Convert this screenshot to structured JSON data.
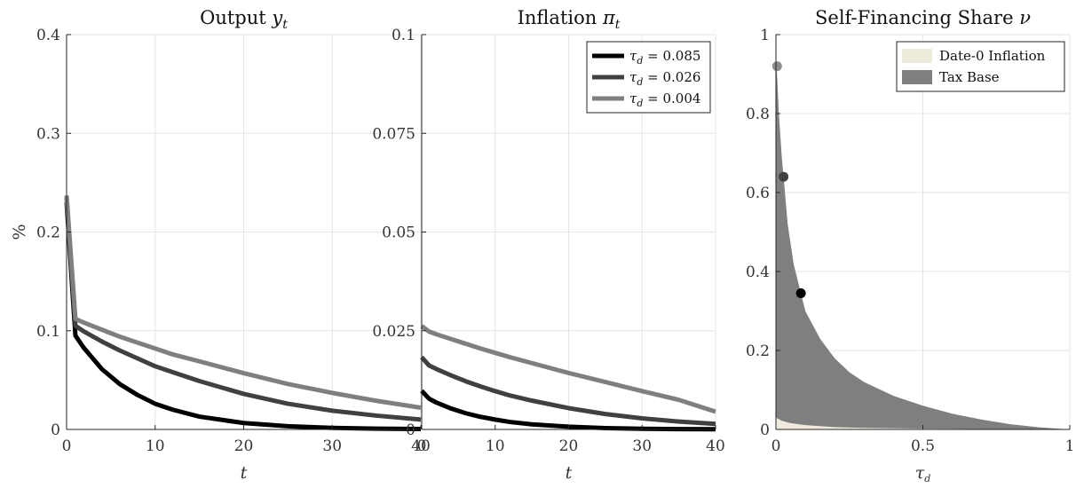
{
  "chart_data": [
    {
      "type": "line",
      "title": "Output y_t",
      "xlabel": "t",
      "ylabel": "%",
      "xlim": [
        0,
        40
      ],
      "ylim": [
        0,
        0.4
      ],
      "xticks": [
        0,
        10,
        20,
        30,
        40
      ],
      "yticks": [
        0,
        0.1,
        0.2,
        0.3,
        0.4
      ],
      "grid": true,
      "series": [
        {
          "name": "τd = 0.085",
          "color": "#000000",
          "x": [
            0,
            1,
            2,
            4,
            6,
            8,
            10,
            12,
            15,
            20,
            25,
            30,
            35,
            40
          ],
          "y": [
            0.23,
            0.095,
            0.082,
            0.061,
            0.046,
            0.035,
            0.026,
            0.02,
            0.013,
            0.0065,
            0.0033,
            0.0016,
            0.0008,
            0.0004
          ]
        },
        {
          "name": "τd = 0.026",
          "color": "#404040",
          "x": [
            0,
            1,
            2,
            4,
            6,
            8,
            10,
            12,
            15,
            20,
            25,
            30,
            35,
            40
          ],
          "y": [
            0.235,
            0.105,
            0.099,
            0.089,
            0.08,
            0.072,
            0.064,
            0.058,
            0.049,
            0.036,
            0.026,
            0.019,
            0.014,
            0.01
          ]
        },
        {
          "name": "τd = 0.004",
          "color": "#7f7f7f",
          "x": [
            0,
            1,
            2,
            4,
            6,
            8,
            10,
            12,
            15,
            20,
            25,
            30,
            35,
            40
          ],
          "y": [
            0.237,
            0.112,
            0.108,
            0.101,
            0.094,
            0.088,
            0.082,
            0.076,
            0.069,
            0.057,
            0.046,
            0.037,
            0.029,
            0.022
          ]
        }
      ]
    },
    {
      "type": "line",
      "title": "Inflation π_t",
      "xlabel": "t",
      "xlim": [
        0,
        40
      ],
      "ylim": [
        0,
        0.1
      ],
      "xticks": [
        0,
        10,
        20,
        30,
        40
      ],
      "yticks": [
        0,
        0.025,
        0.05,
        0.075,
        0.1
      ],
      "grid": true,
      "legend": "top-right",
      "series": [
        {
          "name": "τd = 0.085",
          "color": "#000000",
          "x": [
            0,
            1,
            2,
            4,
            6,
            8,
            10,
            12,
            15,
            20,
            25,
            30,
            35,
            40
          ],
          "y": [
            0.0098,
            0.0078,
            0.0068,
            0.0053,
            0.0041,
            0.0032,
            0.0025,
            0.0019,
            0.0013,
            0.0007,
            0.00035,
            0.00018,
            9e-05,
            5e-05
          ]
        },
        {
          "name": "τd = 0.026",
          "color": "#404040",
          "x": [
            0,
            1,
            2,
            4,
            6,
            8,
            10,
            12,
            15,
            20,
            25,
            30,
            35,
            40
          ],
          "y": [
            0.0183,
            0.0162,
            0.0153,
            0.0137,
            0.0122,
            0.0109,
            0.0097,
            0.0086,
            0.0073,
            0.0054,
            0.0039,
            0.0028,
            0.002,
            0.0014
          ]
        },
        {
          "name": "τd = 0.004",
          "color": "#7f7f7f",
          "x": [
            0,
            1,
            2,
            4,
            6,
            8,
            10,
            12,
            15,
            20,
            25,
            30,
            35,
            40
          ],
          "y": [
            0.0262,
            0.0248,
            0.0241,
            0.0229,
            0.0217,
            0.0205,
            0.0194,
            0.0183,
            0.0168,
            0.0143,
            0.012,
            0.0097,
            0.0075,
            0.0045
          ]
        }
      ]
    },
    {
      "type": "area",
      "title": "Self-Financing Share ν",
      "xlabel": "τd",
      "xlim": [
        0,
        1
      ],
      "ylim": [
        0,
        1
      ],
      "xticks": [
        0,
        0.5,
        1
      ],
      "yticks": [
        0,
        0.2,
        0.4,
        0.6,
        0.8,
        1
      ],
      "grid": true,
      "legend": "top-right",
      "series": [
        {
          "name": "Date-0 Inflation",
          "color": "#efebdc",
          "x": [
            0,
            0.02,
            0.05,
            0.1,
            0.2,
            0.3,
            0.5,
            0.7,
            1.0
          ],
          "y": [
            0.03,
            0.022,
            0.016,
            0.011,
            0.006,
            0.004,
            0.002,
            0.001,
            0.0
          ]
        },
        {
          "name": "Tax Base",
          "color": "#7f7f7f",
          "x": [
            0,
            0.005,
            0.01,
            0.02,
            0.026,
            0.04,
            0.06,
            0.085,
            0.1,
            0.15,
            0.2,
            0.25,
            0.3,
            0.4,
            0.5,
            0.6,
            0.7,
            0.8,
            0.9,
            1.0
          ],
          "y": [
            0.95,
            0.88,
            0.8,
            0.69,
            0.64,
            0.52,
            0.42,
            0.345,
            0.3,
            0.23,
            0.18,
            0.145,
            0.12,
            0.085,
            0.06,
            0.04,
            0.025,
            0.013,
            0.005,
            0.0
          ]
        }
      ],
      "points": [
        {
          "x": 0.004,
          "y": 0.92,
          "color": "#8c8c8c"
        },
        {
          "x": 0.026,
          "y": 0.64,
          "color": "#404040"
        },
        {
          "x": 0.085,
          "y": 0.345,
          "color": "#000000"
        }
      ]
    }
  ]
}
